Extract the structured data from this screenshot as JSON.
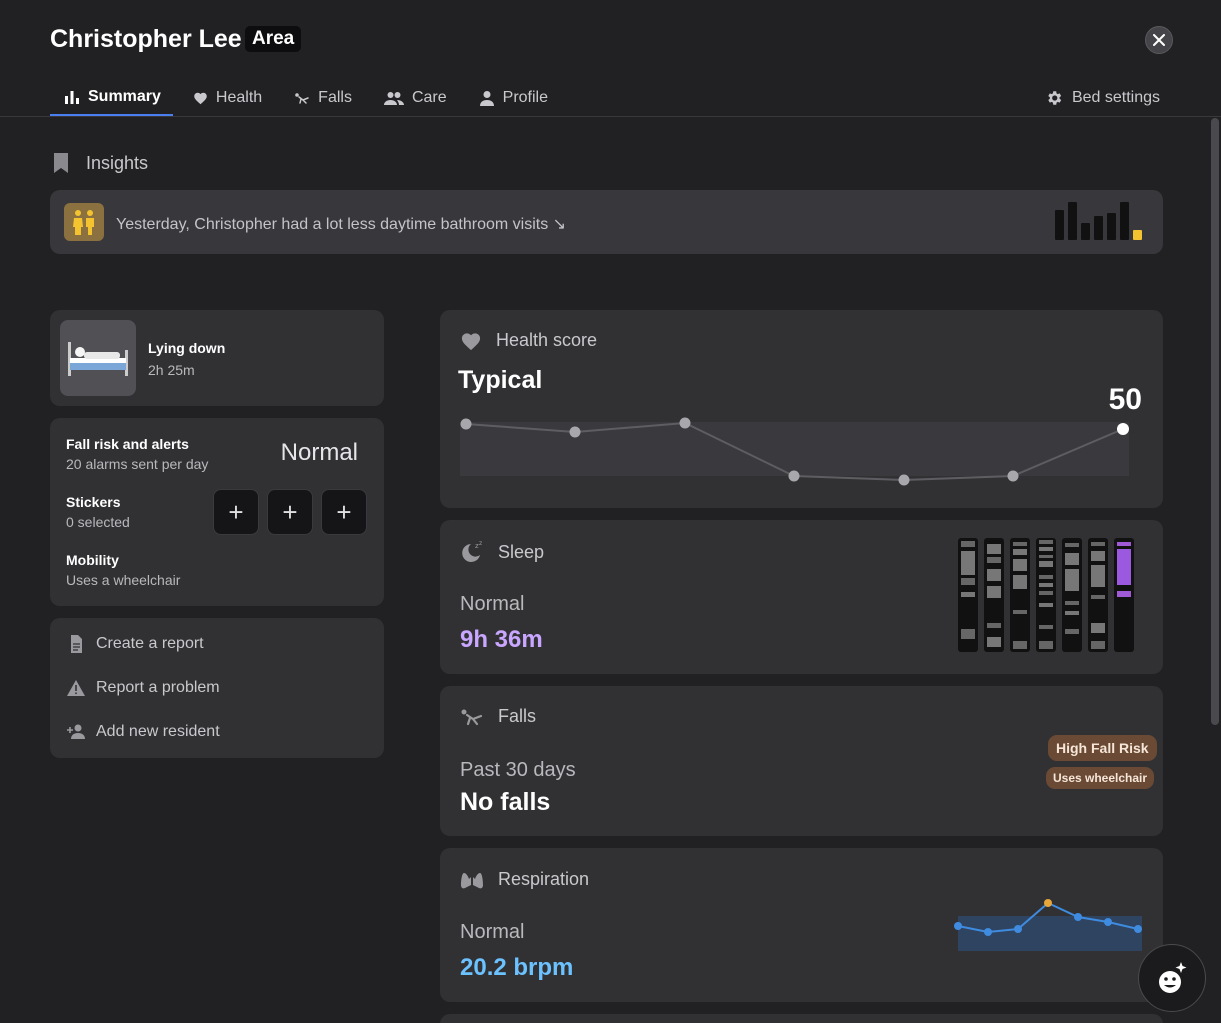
{
  "header": {
    "name": "Christopher Lee",
    "area": "Area"
  },
  "tabs": [
    {
      "label": "Summary",
      "icon": "bar-chart-icon",
      "active": true
    },
    {
      "label": "Health",
      "icon": "heart-icon"
    },
    {
      "label": "Falls",
      "icon": "fall-icon"
    },
    {
      "label": "Care",
      "icon": "people-icon"
    },
    {
      "label": "Profile",
      "icon": "person-icon"
    }
  ],
  "bed_settings": {
    "label": "Bed settings",
    "icon": "gear-icon"
  },
  "insights": {
    "title": "Insights",
    "text": "Yesterday, Christopher had a lot less daytime bathroom visits ↘",
    "bars": [
      0.8,
      1.0,
      0.45,
      0.62,
      0.72,
      1.0,
      0.25
    ],
    "highlight_color": "#f4c430"
  },
  "status": {
    "label": "Lying down",
    "duration": "2h 25m"
  },
  "fall_risk": {
    "label": "Fall risk and alerts",
    "sub": "20 alarms sent per day",
    "value": "Normal",
    "stickers_label": "Stickers",
    "stickers_sub": "0 selected",
    "plus": "+",
    "mobility_label": "Mobility",
    "mobility_sub": "Uses a wheelchair"
  },
  "actions": {
    "create_report": "Create a report",
    "report_problem": "Report a problem",
    "add_resident": "Add new resident"
  },
  "health_score": {
    "title": "Health score",
    "status": "Typical",
    "value": "50"
  },
  "sleep": {
    "title": "Sleep",
    "status": "Normal",
    "value": "9h 36m",
    "accent": "#c9a6ff"
  },
  "falls": {
    "title": "Falls",
    "period": "Past 30 days",
    "value": "No falls",
    "badge1": "High Fall Risk",
    "badge2": "Uses wheelchair"
  },
  "respiration": {
    "title": "Respiration",
    "status": "Normal",
    "value": "20.2 brpm",
    "accent": "#6cc1ff"
  },
  "colors": {
    "tab_underline": "#4a7ff0",
    "badge_bg": "#6a4a35"
  }
}
